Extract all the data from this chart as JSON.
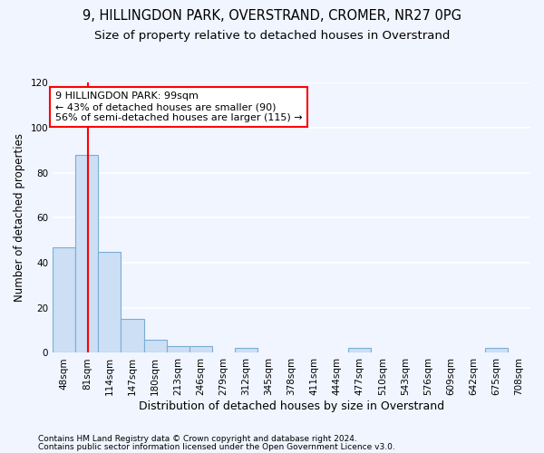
{
  "title1": "9, HILLINGDON PARK, OVERSTRAND, CROMER, NR27 0PG",
  "title2": "Size of property relative to detached houses in Overstrand",
  "xlabel": "Distribution of detached houses by size in Overstrand",
  "ylabel": "Number of detached properties",
  "bin_labels": [
    "48sqm",
    "81sqm",
    "114sqm",
    "147sqm",
    "180sqm",
    "213sqm",
    "246sqm",
    "279sqm",
    "312sqm",
    "345sqm",
    "378sqm",
    "411sqm",
    "444sqm",
    "477sqm",
    "510sqm",
    "543sqm",
    "576sqm",
    "609sqm",
    "642sqm",
    "675sqm",
    "708sqm"
  ],
  "bar_values": [
    47,
    88,
    45,
    15,
    6,
    3,
    3,
    0,
    2,
    0,
    0,
    0,
    0,
    2,
    0,
    0,
    0,
    0,
    0,
    2,
    0
  ],
  "bar_color": "#ccdff5",
  "bar_edge_color": "#7aadd4",
  "red_line_x": 99,
  "bin_edges_sqm": [
    48,
    81,
    114,
    147,
    180,
    213,
    246,
    279,
    312,
    345,
    378,
    411,
    444,
    477,
    510,
    543,
    576,
    609,
    642,
    675,
    708
  ],
  "bin_width": 33,
  "annotation_line1": "9 HILLINGDON PARK: 99sqm",
  "annotation_line2": "← 43% of detached houses are smaller (90)",
  "annotation_line3": "56% of semi-detached houses are larger (115) →",
  "annotation_box_color": "white",
  "annotation_box_edgecolor": "red",
  "ylim": [
    0,
    120
  ],
  "yticks": [
    0,
    20,
    40,
    60,
    80,
    100,
    120
  ],
  "footer1": "Contains HM Land Registry data © Crown copyright and database right 2024.",
  "footer2": "Contains public sector information licensed under the Open Government Licence v3.0.",
  "bg_color": "#f0f5ff",
  "plot_bg_color": "#f0f5ff",
  "grid_color": "#ffffff",
  "title1_fontsize": 10.5,
  "title2_fontsize": 9.5,
  "xlabel_fontsize": 9,
  "ylabel_fontsize": 8.5,
  "tick_fontsize": 7.5,
  "annotation_fontsize": 8,
  "footer_fontsize": 6.5
}
